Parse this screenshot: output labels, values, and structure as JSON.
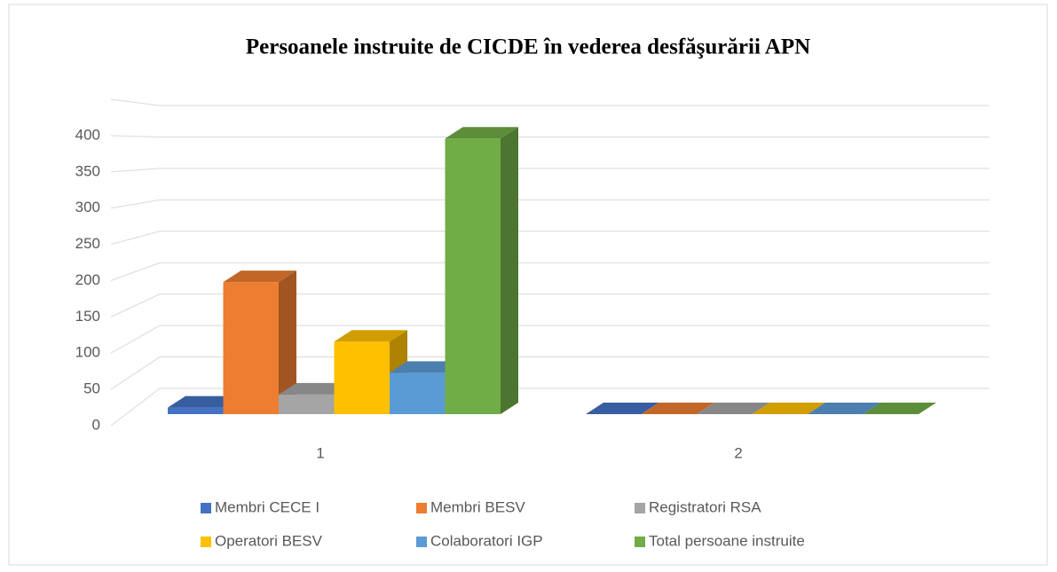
{
  "chart_data": {
    "type": "bar3d",
    "title": "Persoanele instruite de CICDE în vederea desfăşurării APN",
    "categories": [
      "1",
      "2"
    ],
    "series": [
      {
        "name": "Membri CECE I",
        "color": "#4472c4",
        "values": [
          9,
          0
        ]
      },
      {
        "name": "Membri BESV",
        "color": "#ed7d31",
        "values": [
          182,
          0
        ]
      },
      {
        "name": "Registratori RSA",
        "color": "#a5a5a5",
        "values": [
          27,
          0
        ]
      },
      {
        "name": "Operatori BESV",
        "color": "#ffc000",
        "values": [
          100,
          0
        ]
      },
      {
        "name": "Colaboratori IGP",
        "color": "#5b9bd5",
        "values": [
          57,
          0
        ]
      },
      {
        "name": "Total persoane instruite",
        "color": "#70ad47",
        "values": [
          380,
          0
        ]
      }
    ],
    "ylim": [
      0,
      450
    ],
    "yticks": [
      0,
      50,
      100,
      150,
      200,
      250,
      300,
      350,
      400
    ],
    "grid": true,
    "legend": "bottom"
  }
}
